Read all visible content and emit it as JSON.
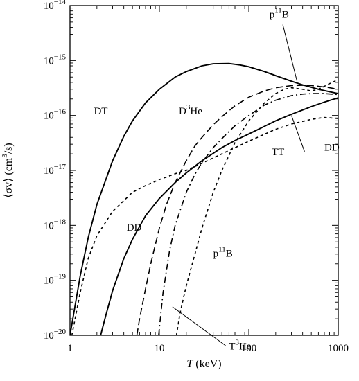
{
  "chart_data": {
    "type": "line",
    "title": "",
    "xlabel": {
      "var": "T",
      "unit": "(keV)"
    },
    "ylabel": {
      "pre": "⟨σv⟩ (cm",
      "exp": "3",
      "post": "/s)"
    },
    "x_scale": "log",
    "y_scale": "log",
    "xlim": [
      1,
      1000
    ],
    "ylim": [
      1e-20,
      1e-14
    ],
    "x_ticks": [
      {
        "value": 1,
        "label": "1"
      },
      {
        "value": 10,
        "label": "10"
      },
      {
        "value": 100,
        "label": "100"
      },
      {
        "value": 1000,
        "label": "1000"
      }
    ],
    "y_ticks": [
      {
        "value": 1e-20,
        "base": "10",
        "exp": "−20"
      },
      {
        "value": 1e-19,
        "base": "10",
        "exp": "−19"
      },
      {
        "value": 1e-18,
        "base": "10",
        "exp": "−18"
      },
      {
        "value": 1e-17,
        "base": "10",
        "exp": "−17"
      },
      {
        "value": 1e-16,
        "base": "10",
        "exp": "−16"
      },
      {
        "value": 1e-15,
        "base": "10",
        "exp": "−15"
      },
      {
        "value": 1e-14,
        "base": "10",
        "exp": "−14"
      }
    ],
    "grid": false,
    "legend": "none",
    "series": [
      {
        "style": "solid",
        "x": [
          1,
          1.3,
          1.6,
          2,
          3,
          4,
          5,
          7,
          10,
          15,
          20,
          30,
          40,
          60,
          80,
          100,
          150,
          200,
          300,
          400,
          600,
          800,
          1000
        ],
        "y": [
          1e-20,
          1.2e-19,
          6e-19,
          2.4e-18,
          1.5e-17,
          4.2e-17,
          8e-17,
          1.7e-16,
          3e-16,
          5e-16,
          6.3e-16,
          8e-16,
          8.7e-16,
          8.8e-16,
          8.3e-16,
          7.7e-16,
          6.3e-16,
          5.3e-16,
          4.2e-16,
          3.6e-16,
          3e-16,
          2.7e-16,
          2.5e-16
        ]
      },
      {
        "style": "solid",
        "x": [
          2.2,
          2.5,
          3,
          4,
          5,
          7,
          10,
          15,
          20,
          30,
          50,
          70,
          100,
          200,
          300,
          500,
          700,
          1000
        ],
        "y": [
          1e-20,
          2.2e-20,
          6.5e-20,
          2.5e-19,
          5.6e-19,
          1.5e-18,
          3.1e-18,
          6e-18,
          9e-18,
          1.5e-17,
          2.6e-17,
          3.5e-17,
          4.6e-17,
          8e-17,
          1.05e-16,
          1.45e-16,
          1.75e-16,
          2.1e-16
        ]
      },
      {
        "style": "dashed",
        "x": [
          5.6,
          6,
          7,
          8,
          10,
          12,
          15,
          20,
          25,
          30,
          40,
          50,
          70,
          100,
          150,
          200,
          300,
          400,
          500,
          600,
          800,
          1000
        ],
        "y": [
          1e-20,
          2e-20,
          7e-20,
          2e-19,
          9e-19,
          2.4e-18,
          6e-18,
          1.5e-17,
          2.8e-17,
          4e-17,
          6.8e-17,
          9.5e-17,
          1.5e-16,
          2.15e-16,
          2.8e-16,
          3.2e-16,
          3.5e-16,
          3.55e-16,
          3.5e-16,
          3.4e-16,
          3.2e-16,
          3e-16
        ]
      },
      {
        "style": "dotted",
        "x": [
          1.05,
          1.3,
          1.6,
          2,
          3,
          5,
          7,
          10,
          15,
          20,
          30,
          50,
          100,
          200,
          300,
          500,
          700,
          1000
        ],
        "y": [
          1e-20,
          6e-20,
          2.5e-19,
          6.5e-19,
          1.8e-18,
          4e-18,
          5.3e-18,
          6.8e-18,
          8.7e-18,
          1e-17,
          1.35e-17,
          2e-17,
          3.4e-17,
          5.6e-17,
          7e-17,
          8.5e-17,
          9.2e-17,
          8.8e-17
        ]
      },
      {
        "style": "dashdot",
        "x": [
          9.8,
          11,
          13,
          15,
          20,
          25,
          30,
          40,
          50,
          70,
          100,
          150,
          200,
          300,
          400,
          500,
          700,
          1000
        ],
        "y": [
          1e-20,
          6e-20,
          3.5e-19,
          1e-18,
          4e-18,
          8.5e-18,
          1.4e-17,
          2.6e-17,
          3.8e-17,
          6.5e-17,
          1e-16,
          1.55e-16,
          1.9e-16,
          2.3e-16,
          2.45e-16,
          2.5e-16,
          2.5e-16,
          2.4e-16
        ]
      },
      {
        "style": "dotted",
        "x": [
          15.5,
          17,
          20,
          25,
          30,
          40,
          50,
          70,
          100,
          150,
          200,
          250,
          300,
          400,
          500,
          600,
          800,
          1000
        ],
        "y": [
          1e-20,
          2.5e-20,
          8e-20,
          3e-19,
          9e-19,
          4e-18,
          1e-17,
          3.2e-17,
          8e-17,
          1.7e-16,
          2.5e-16,
          3e-16,
          3.2e-16,
          3e-16,
          2.8e-16,
          3e-16,
          3.8e-16,
          4.5e-16
        ]
      }
    ],
    "annotations": [
      {
        "label": "DT",
        "sup": "",
        "post": "",
        "x": 1.85,
        "y": 1.05e-16
      },
      {
        "label": "D",
        "sup": "3",
        "post": "He",
        "x": 16.5,
        "y": 1.05e-16
      },
      {
        "label": "p",
        "sup": "11",
        "post": "B",
        "x": 170,
        "y": 6e-15
      },
      {
        "label": "TT",
        "sup": "",
        "post": "",
        "x": 180,
        "y": 1.9e-17
      },
      {
        "label": "DD",
        "sup": "",
        "post": "",
        "x": 700,
        "y": 2.3e-17
      },
      {
        "label": "DD",
        "sup": "",
        "post": "",
        "x": 4.3,
        "y": 8e-19
      },
      {
        "label": "p",
        "sup": "11",
        "post": "B",
        "x": 40,
        "y": 2.7e-19
      },
      {
        "label": "T",
        "sup": "3",
        "post": "He",
        "x": 60,
        "y": 5.5e-21
      }
    ],
    "callouts": [
      {
        "from": [
          240,
          4.5e-15
        ],
        "to": [
          345,
          4.3e-16
        ]
      },
      {
        "from": [
          420,
          2.2e-17
        ],
        "to": [
          300,
          1e-16
        ]
      },
      {
        "from": [
          55,
          6.5e-21
        ],
        "to": [
          14,
          3.3e-20
        ]
      }
    ]
  }
}
